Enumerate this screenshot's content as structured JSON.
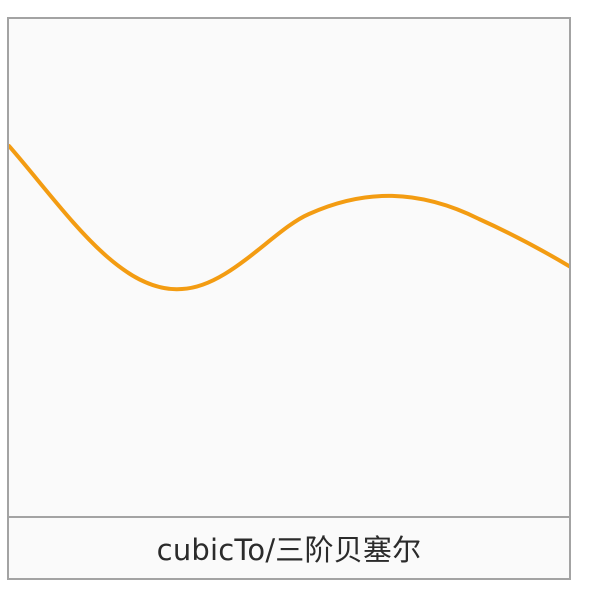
{
  "caption": {
    "label": "cubicTo/三阶贝塞尔"
  },
  "curve": {
    "stroke_color": "#f39c12",
    "description_name": "cubic-bezier-curve"
  },
  "colors": {
    "card_background": "#fafafa",
    "border": "#a3a3a3",
    "caption_text": "#2b2b2b"
  }
}
